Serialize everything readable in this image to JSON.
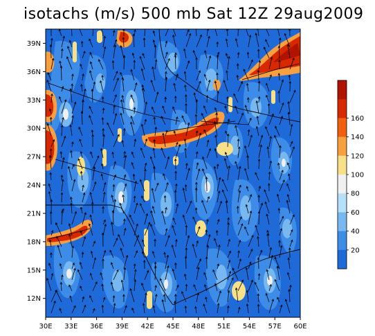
{
  "title": "isotachs (m/s) 500 mb Sat 12Z 29aug2009",
  "map": {
    "lat_labels": [
      "39N",
      "36N",
      "33N",
      "30N",
      "27N",
      "24N",
      "21N",
      "18N",
      "15N",
      "12N"
    ],
    "lon_labels": [
      "30E",
      "33E",
      "36E",
      "39E",
      "42E",
      "45E",
      "48E",
      "51E",
      "54E",
      "57E",
      "60E"
    ],
    "lat_range": [
      10,
      40.5
    ],
    "lon_range": [
      30,
      60
    ]
  },
  "colorbar": {
    "labels": [
      "20",
      "40",
      "60",
      "80",
      "100",
      "120",
      "140",
      "160"
    ],
    "colors": [
      "#1e6ad8",
      "#3c8ce8",
      "#78b8f0",
      "#b4e0f8",
      "#f0f0f0",
      "#f8e088",
      "#f8a040",
      "#f06010",
      "#d82800",
      "#b01400"
    ]
  }
}
